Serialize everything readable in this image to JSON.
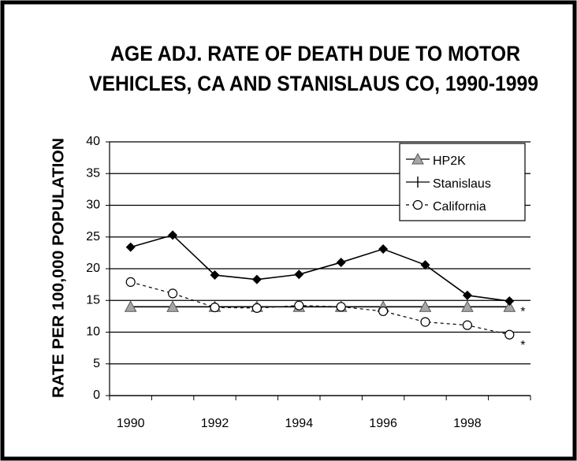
{
  "chart_data": {
    "type": "line",
    "title_lines": [
      "AGE ADJ. RATE OF DEATH DUE TO MOTOR",
      "VEHICLES, CA AND STANISLAUS CO, 1990-1999"
    ],
    "y_label": "RATE PER 100,000 POPULATION",
    "categories": [
      "1990",
      null,
      "1992",
      null,
      "1994",
      null,
      "1996",
      null,
      "1998",
      null
    ],
    "series": [
      {
        "name": "HP2K",
        "color": "#a6a6a6",
        "marker": "triangle",
        "dash": false,
        "values": [
          14,
          14,
          14,
          14,
          14,
          14,
          14,
          14,
          14,
          14
        ]
      },
      {
        "name": "Stanislaus",
        "color": "#000000",
        "marker": "diamond",
        "dash": false,
        "values": [
          23.4,
          25.3,
          19.0,
          18.3,
          19.1,
          21.0,
          23.1,
          20.6,
          15.8,
          14.9
        ]
      },
      {
        "name": "California",
        "color": "#000000",
        "marker": "circle",
        "dash": true,
        "values": [
          17.9,
          16.1,
          13.9,
          13.8,
          14.2,
          14.0,
          13.3,
          11.6,
          11.1,
          9.6
        ]
      }
    ],
    "annotations": [
      "*",
      "*"
    ],
    "ylim": [
      0,
      40
    ],
    "yticks": [
      0,
      5,
      10,
      15,
      20,
      25,
      30,
      35,
      40
    ],
    "grid": true,
    "legend": "upper right"
  }
}
